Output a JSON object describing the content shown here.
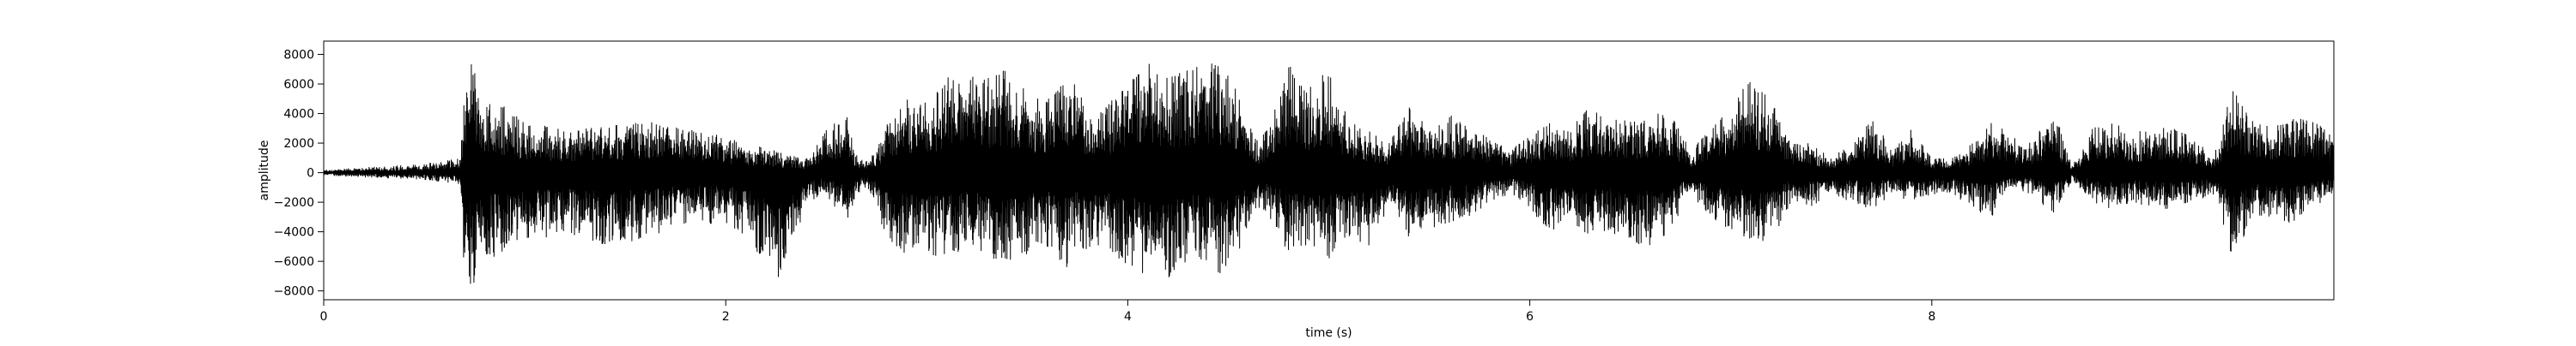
{
  "chart_data": {
    "type": "line",
    "title": "",
    "xlabel": "time (s)",
    "ylabel": "amplitude",
    "xlim": [
      0,
      10
    ],
    "ylim": [
      -8600,
      8900
    ],
    "x_ticks": [
      0,
      2,
      4,
      6,
      8
    ],
    "x_tick_labels": [
      "0",
      "2",
      "4",
      "6",
      "8"
    ],
    "y_ticks": [
      -8000,
      -6000,
      -4000,
      -2000,
      0,
      2000,
      4000,
      6000,
      8000
    ],
    "y_tick_labels": [
      "−8000",
      "−6000",
      "−4000",
      "−2000",
      "0",
      "2000",
      "4000",
      "6000",
      "8000"
    ],
    "grid": false,
    "line_color": "#000000",
    "envelope": {
      "x": [
        0.0,
        0.5,
        0.68,
        0.7,
        0.72,
        0.75,
        0.8,
        0.9,
        1.0,
        1.2,
        1.4,
        1.6,
        1.8,
        2.0,
        2.1,
        2.25,
        2.3,
        2.4,
        2.5,
        2.6,
        2.65,
        2.7,
        2.75,
        2.8,
        2.9,
        3.0,
        3.1,
        3.2,
        3.3,
        3.4,
        3.5,
        3.6,
        3.7,
        3.75,
        3.8,
        3.9,
        4.0,
        4.1,
        4.2,
        4.3,
        4.4,
        4.5,
        4.6,
        4.65,
        4.7,
        4.8,
        4.9,
        5.0,
        5.1,
        5.2,
        5.3,
        5.4,
        5.5,
        5.6,
        5.7,
        5.8,
        5.9,
        6.0,
        6.1,
        6.2,
        6.3,
        6.4,
        6.5,
        6.6,
        6.7,
        6.8,
        6.9,
        7.0,
        7.1,
        7.2,
        7.3,
        7.4,
        7.5,
        7.6,
        7.7,
        7.8,
        7.9,
        8.0,
        8.1,
        8.2,
        8.3,
        8.4,
        8.5,
        8.6,
        8.7,
        8.8,
        8.9,
        9.0,
        9.1,
        9.2,
        9.3,
        9.4,
        9.5,
        9.6,
        9.7,
        9.8,
        9.9,
        10.0
      ],
      "upper": [
        200,
        600,
        1000,
        5500,
        8200,
        7500,
        5000,
        4500,
        3500,
        3000,
        3200,
        3500,
        3000,
        2500,
        2000,
        1500,
        1200,
        1000,
        3000,
        4000,
        1200,
        800,
        1500,
        3500,
        5000,
        5000,
        6500,
        7000,
        6500,
        7000,
        5500,
        5000,
        7000,
        6800,
        4000,
        4500,
        7000,
        7500,
        6500,
        7000,
        7500,
        7000,
        3500,
        2000,
        3500,
        7500,
        6000,
        7000,
        3500,
        3000,
        2000,
        4500,
        3500,
        4000,
        3000,
        2500,
        1500,
        2500,
        3500,
        3000,
        4500,
        4000,
        3500,
        4000,
        4000,
        1500,
        3000,
        4500,
        6500,
        5500,
        2000,
        2000,
        1000,
        2000,
        4000,
        1500,
        3000,
        1000,
        1000,
        2000,
        3500,
        2500,
        2000,
        4500,
        500,
        3000,
        3500,
        2500,
        3500,
        3000,
        2500,
        1000,
        6000,
        3500,
        3000,
        4000,
        3500,
        2500
      ],
      "lower": [
        -200,
        -500,
        -800,
        -7500,
        -7800,
        -7500,
        -6000,
        -5500,
        -5000,
        -4000,
        -5000,
        -4500,
        -3500,
        -3500,
        -4500,
        -7000,
        -7500,
        -2000,
        -1500,
        -3500,
        -1500,
        -1000,
        -2000,
        -5000,
        -5500,
        -5500,
        -6000,
        -5000,
        -6000,
        -6000,
        -5500,
        -5000,
        -6500,
        -4500,
        -6000,
        -5000,
        -6500,
        -7000,
        -7500,
        -6000,
        -6000,
        -7500,
        -3500,
        -2500,
        -3000,
        -5500,
        -5000,
        -6000,
        -4500,
        -5000,
        -2500,
        -4500,
        -4000,
        -3500,
        -3000,
        -2000,
        -1500,
        -2500,
        -4000,
        -3500,
        -4500,
        -4000,
        -5000,
        -5000,
        -4000,
        -1500,
        -3000,
        -4000,
        -4500,
        -5000,
        -2000,
        -2500,
        -1500,
        -2000,
        -2500,
        -1500,
        -2000,
        -1500,
        -1500,
        -2500,
        -3000,
        -1000,
        -1500,
        -3000,
        -500,
        -2000,
        -2500,
        -2000,
        -2500,
        -2500,
        -2000,
        -1500,
        -6000,
        -3000,
        -3000,
        -3500,
        -2500,
        -1500
      ]
    }
  }
}
